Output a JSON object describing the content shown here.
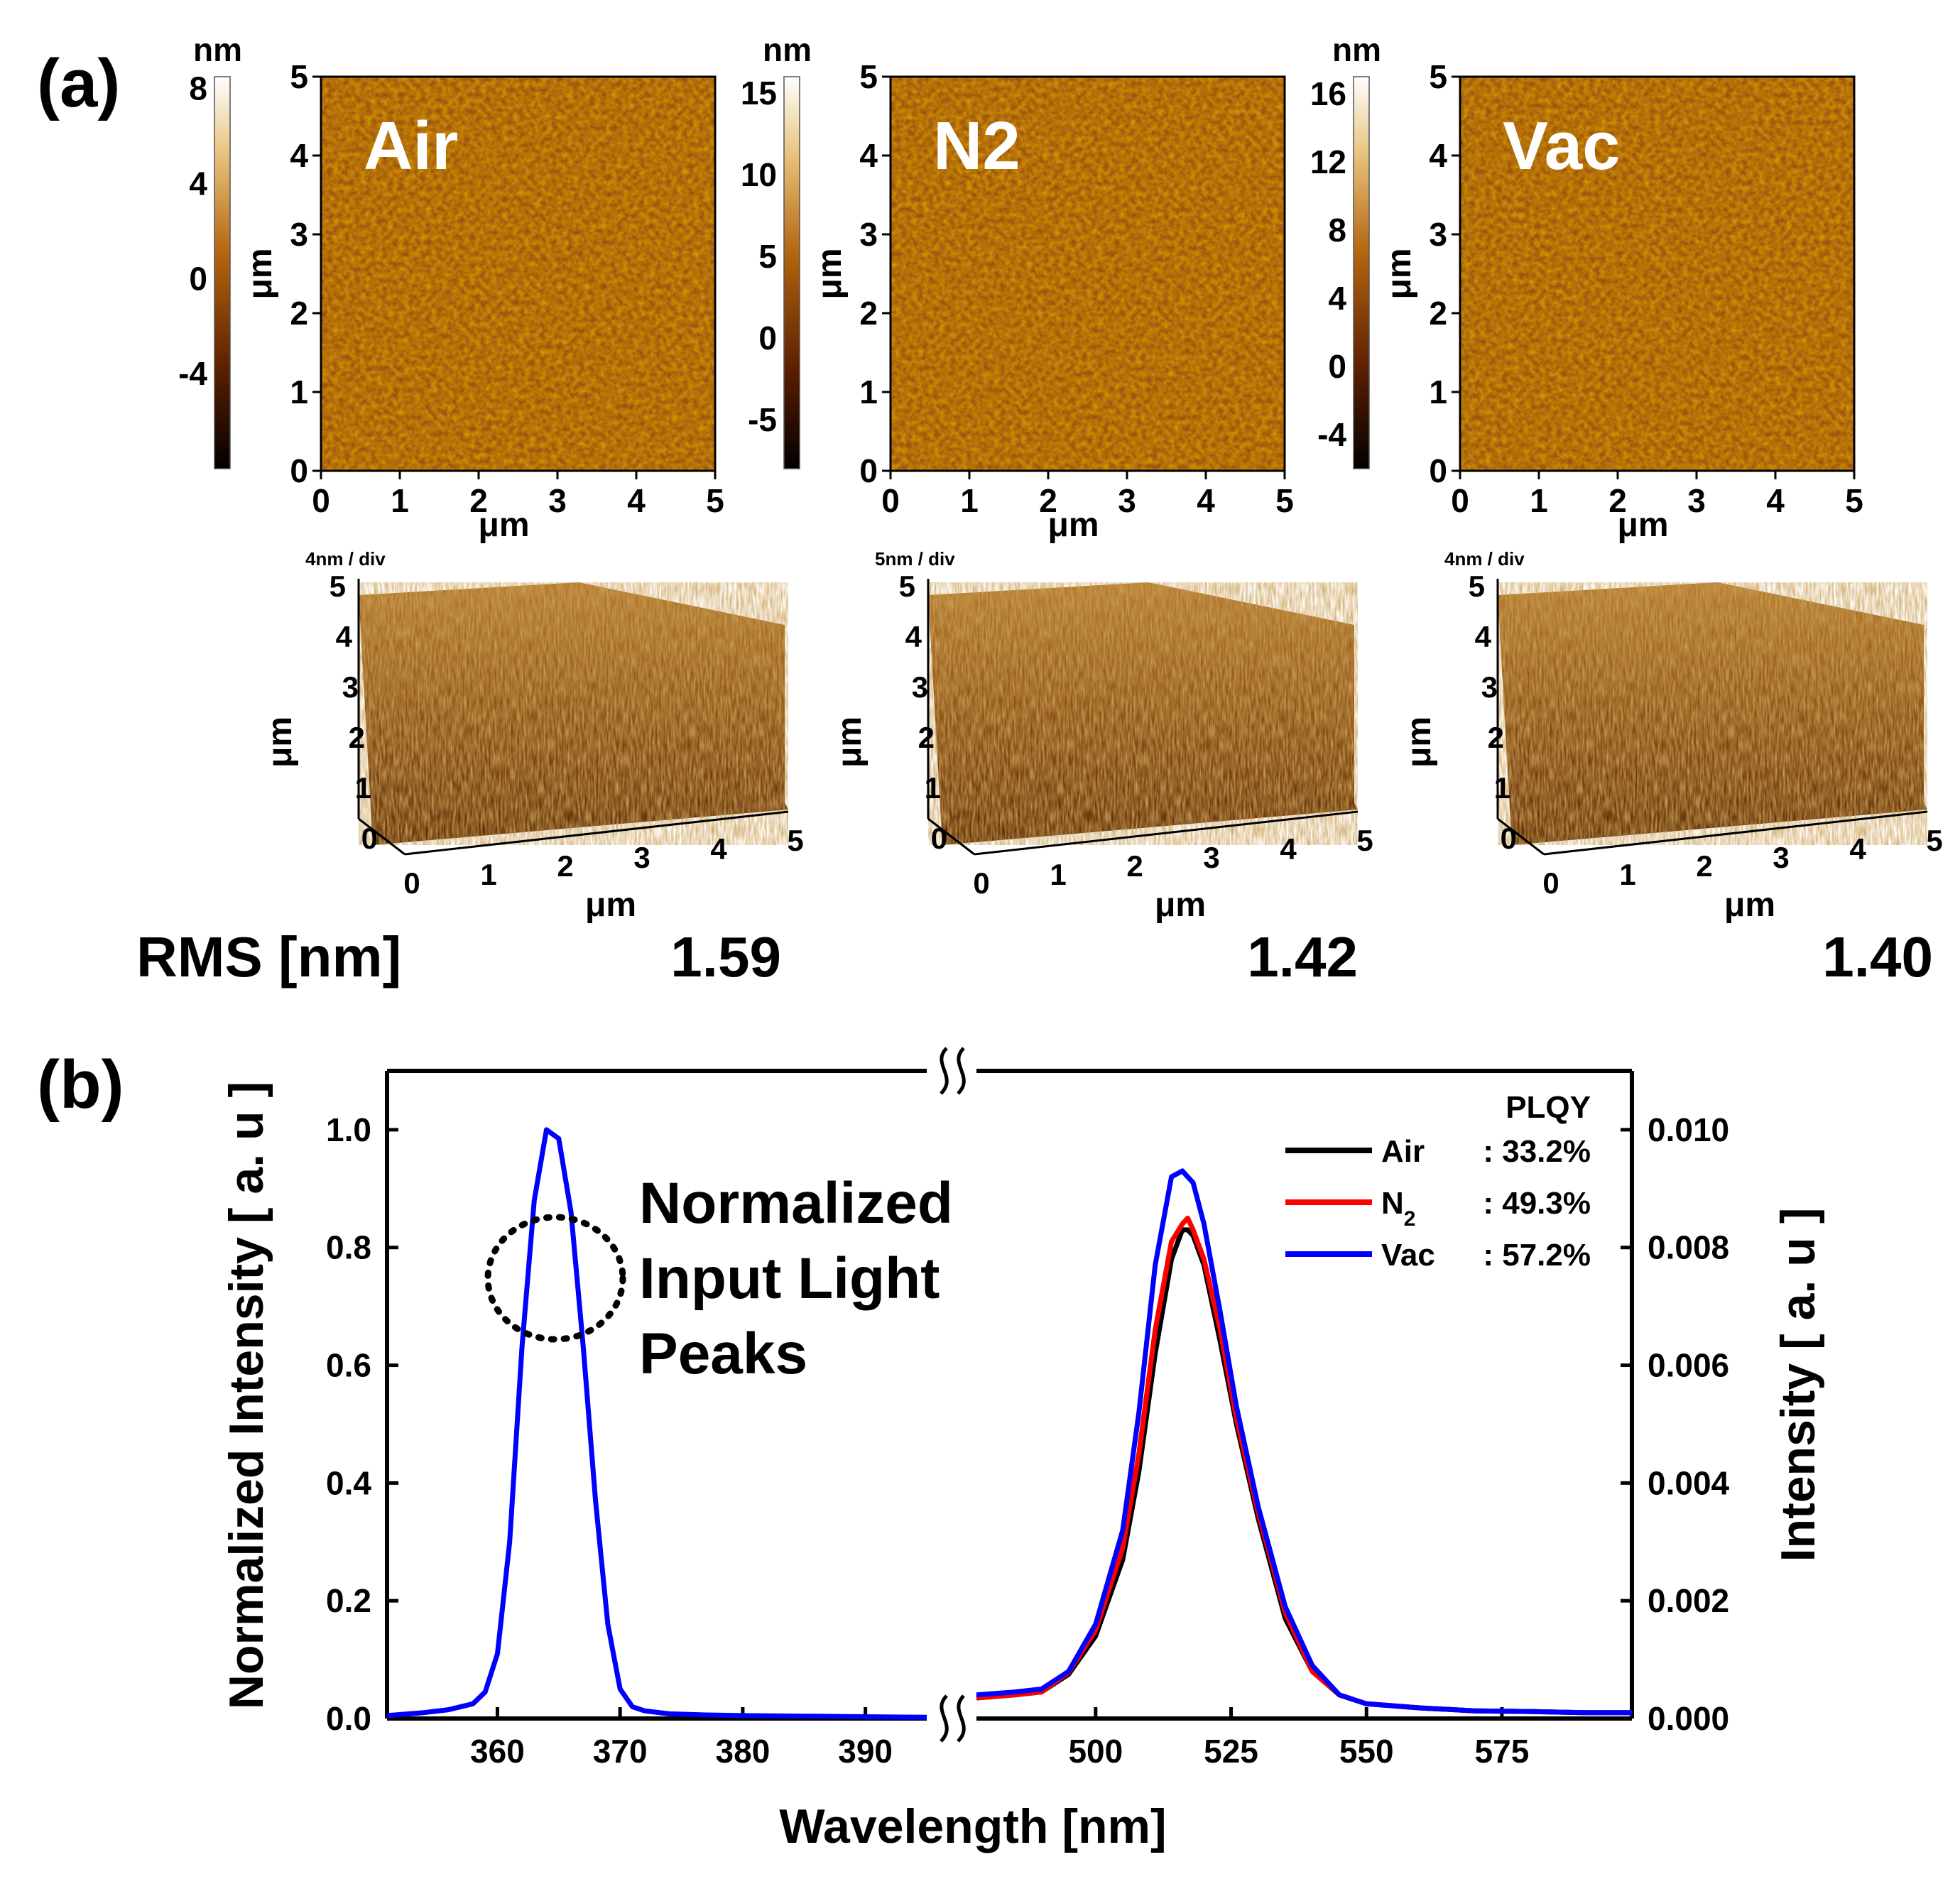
{
  "panel_a": {
    "label": "(a)",
    "axis_unit": "μm",
    "colorbar_unit": "nm",
    "rms_label": "RMS [nm]",
    "maps": [
      {
        "sample": "Air",
        "colorbar_ticks": [
          "8",
          "4",
          "0",
          "-4"
        ],
        "colorbar_range": [
          -8,
          8.5
        ],
        "xy_ticks": [
          "0",
          "1",
          "2",
          "3",
          "4",
          "5"
        ],
        "div_label": "4nm / div",
        "surf_y_ticks": [
          "0",
          "1",
          "2",
          "3",
          "4",
          "5"
        ],
        "surf_x_ticks": [
          "0",
          "1",
          "2",
          "3",
          "4",
          "5"
        ],
        "rms": "1.59"
      },
      {
        "sample": "N2",
        "colorbar_ticks": [
          "15",
          "10",
          "5",
          "0",
          "-5"
        ],
        "colorbar_range": [
          -8,
          16
        ],
        "xy_ticks": [
          "0",
          "1",
          "2",
          "3",
          "4",
          "5"
        ],
        "div_label": "5nm / div",
        "surf_y_ticks": [
          "0",
          "1",
          "2",
          "3",
          "4",
          "5"
        ],
        "surf_x_ticks": [
          "0",
          "1",
          "2",
          "3",
          "4",
          "5"
        ],
        "rms": "1.42"
      },
      {
        "sample": "Vac",
        "colorbar_ticks": [
          "16",
          "12",
          "8",
          "4",
          "0",
          "-4"
        ],
        "colorbar_range": [
          -6,
          17
        ],
        "xy_ticks": [
          "0",
          "1",
          "2",
          "3",
          "4",
          "5"
        ],
        "div_label": "4nm / div",
        "surf_y_ticks": [
          "0",
          "1",
          "2",
          "3",
          "4",
          "5"
        ],
        "surf_x_ticks": [
          "0",
          "1",
          "2",
          "3",
          "4",
          "5"
        ],
        "rms": "1.40"
      }
    ]
  },
  "panel_b": {
    "label": "(b)"
  },
  "colors": {
    "air": "#000000",
    "n2": "#ff0000",
    "vac": "#0000ff",
    "afm_dark": "#2a0c00",
    "afm_mid": "#a0520c",
    "afm_light": "#fff4d6"
  },
  "chart_data": {
    "type": "line",
    "title": "",
    "xlabel": "Wavelength [nm]",
    "ylabel_left": "Normalized Intensity [ a. u ]",
    "ylabel_right": "Intensity [ a. u ]",
    "broken_x_axis": true,
    "segments": [
      {
        "xlim": [
          351,
          395
        ],
        "ticks": [
          360,
          370,
          380,
          390
        ],
        "tick_labels": [
          "360",
          "370",
          "380",
          "390"
        ]
      },
      {
        "xlim": [
          478,
          599
        ],
        "ticks": [
          500,
          525,
          550,
          575
        ],
        "tick_labels": [
          "500",
          "525",
          "550",
          "575"
        ]
      }
    ],
    "left_axis": {
      "ylim": [
        0,
        1.1
      ],
      "ticks": [
        0,
        0.2,
        0.4,
        0.6,
        0.8,
        1.0
      ],
      "tick_labels": [
        "0.0",
        "0.2",
        "0.4",
        "0.6",
        "0.8",
        "1.0"
      ]
    },
    "right_axis": {
      "ylim": [
        0,
        0.011
      ],
      "ticks": [
        0,
        0.002,
        0.004,
        0.006,
        0.008,
        0.01
      ],
      "tick_labels": [
        "0.000",
        "0.002",
        "0.004",
        "0.006",
        "0.008",
        "0.010"
      ]
    },
    "input_peak": {
      "axis": "left",
      "x": [
        351,
        354,
        356,
        358,
        359,
        360,
        361,
        362,
        363,
        364,
        365,
        366,
        367,
        368,
        369,
        370,
        371,
        372,
        374,
        377,
        380,
        385,
        390,
        395
      ],
      "y": [
        0.005,
        0.01,
        0.015,
        0.025,
        0.045,
        0.11,
        0.3,
        0.63,
        0.88,
        1.0,
        0.985,
        0.86,
        0.63,
        0.37,
        0.16,
        0.05,
        0.02,
        0.013,
        0.008,
        0.006,
        0.005,
        0.004,
        0.003,
        0.002
      ]
    },
    "series": [
      {
        "name": "Air",
        "plqy_label": ": 33.2%",
        "color": "#000000",
        "x": [
          478,
          485,
          490,
          495,
          500,
          505,
          508,
          511,
          514,
          516,
          517,
          518,
          520,
          523,
          526,
          530,
          535,
          540,
          545,
          550,
          560,
          570,
          580,
          590,
          599
        ],
        "y": [
          0.00035,
          0.0004,
          0.00045,
          0.00075,
          0.0014,
          0.0027,
          0.0042,
          0.0062,
          0.0078,
          0.0083,
          0.0083,
          0.0082,
          0.0077,
          0.0064,
          0.005,
          0.0034,
          0.0017,
          0.0008,
          0.0004,
          0.00025,
          0.00018,
          0.00013,
          0.00012,
          0.0001,
          0.0001
        ]
      },
      {
        "name": "N2",
        "name_display": "N",
        "name_subscript": "2",
        "plqy_label": ": 49.3%",
        "color": "#ff0000",
        "x": [
          478,
          485,
          490,
          495,
          500,
          505,
          508,
          511,
          514,
          516,
          517,
          518,
          520,
          523,
          526,
          530,
          535,
          540,
          545,
          550,
          560,
          570,
          580,
          590,
          599
        ],
        "y": [
          0.00035,
          0.0004,
          0.00045,
          0.00078,
          0.0015,
          0.0029,
          0.0045,
          0.0066,
          0.0081,
          0.0084,
          0.0085,
          0.0083,
          0.0078,
          0.0066,
          0.0051,
          0.0035,
          0.0018,
          0.0008,
          0.0004,
          0.00025,
          0.00018,
          0.00013,
          0.00012,
          0.0001,
          0.0001
        ]
      },
      {
        "name": "Vac",
        "plqy_label": ": 57.2%",
        "color": "#0000ff",
        "x": [
          478,
          485,
          490,
          495,
          500,
          505,
          508,
          511,
          514,
          516,
          517,
          518,
          520,
          523,
          526,
          530,
          535,
          540,
          545,
          550,
          560,
          570,
          580,
          590,
          599
        ],
        "y": [
          0.0004,
          0.00045,
          0.0005,
          0.0008,
          0.0016,
          0.0032,
          0.0052,
          0.0077,
          0.0092,
          0.0093,
          0.0092,
          0.0091,
          0.0084,
          0.0069,
          0.0053,
          0.0036,
          0.0019,
          0.0009,
          0.0004,
          0.00025,
          0.00018,
          0.00013,
          0.00012,
          0.0001,
          0.0001
        ]
      }
    ],
    "legend_title": "PLQY",
    "legend_position": "top-right",
    "annotation": [
      "Normalized",
      "Input Light",
      "Peaks"
    ]
  }
}
